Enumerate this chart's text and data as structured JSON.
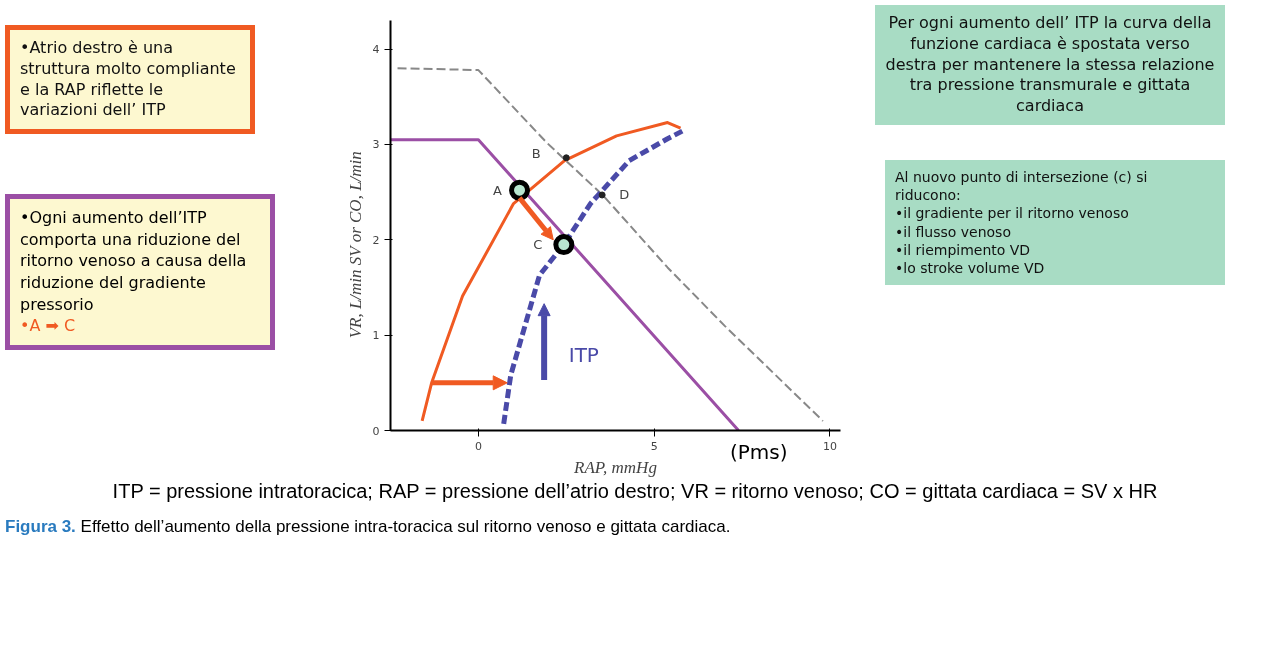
{
  "chart_data": {
    "type": "line",
    "xlabel": "RAP, mmHg",
    "ylabel": "VR, L/min          SV or CO, L/min",
    "title": "Figura 3. Effetto dell’aumento della pressione intra-toracica sul ritorno venoso e gittata cardiaca.",
    "xlim": [
      -2.5,
      10.3
    ],
    "ylim": [
      0,
      4.3
    ],
    "xticks": [
      0,
      5,
      10
    ],
    "yticks": [
      0,
      1,
      2,
      3,
      4
    ],
    "grid": false,
    "series": [
      {
        "color": "#9b4fa5",
        "line_style": "solid",
        "x": [
          -2.5,
          0,
          7.4
        ],
        "values": [
          3.05,
          3.05,
          0
        ]
      },
      {
        "color": "#888888",
        "line_style": "dashed",
        "x": [
          -2.3,
          0,
          1.94,
          3.56,
          5.38,
          7.0,
          9.8
        ],
        "values": [
          3.8,
          3.78,
          3.02,
          2.46,
          1.71,
          1.1,
          0.1
        ]
      },
      {
        "color": "#f05a22",
        "line_style": "solid",
        "x": [
          -1.6,
          -1.33,
          -0.45,
          1.0,
          2.45,
          3.93,
          5.38,
          5.75
        ],
        "values": [
          0.1,
          0.5,
          1.41,
          2.38,
          2.83,
          3.09,
          3.23,
          3.17
        ]
      },
      {
        "color": "#4a4aa8",
        "line_style": "dashed",
        "x": [
          0.72,
          0.92,
          1.74,
          2.43,
          3.19,
          4.29,
          5.38,
          5.8
        ],
        "values": [
          0.07,
          0.58,
          1.63,
          1.95,
          2.38,
          2.83,
          3.06,
          3.14
        ]
      },
      {
        "type": "scatter",
        "marker": "circle",
        "color": "#000000",
        "x": [
          1.17,
          2.43
        ],
        "values": [
          2.52,
          1.95
        ]
      },
      {
        "type": "scatter",
        "marker": "circle",
        "color": "#222222",
        "x": [
          2.5,
          3.52
        ],
        "values": [
          2.86,
          2.47
        ]
      }
    ],
    "annotations": [
      "•Atrio destro è una struttura molto compliante e la RAP riflette le variazioni dell’ ITP",
      "•Ogni aumento dell’ITP comporta una riduzione del ritorno venoso a causa della riduzione del gradiente pressorio",
      "•A ➡ C",
      "Per ogni aumento dell’ ITP la curva della funzione cardiaca è spostata verso destra per mantenere la stessa relazione tra pressione transmurale e gittata cardiaca",
      "Al nuovo punto di intersezione (c) si riducono:\n•il gradiente per il ritorno venoso\n•il flusso venoso\n•il riempimento VD\n•lo stroke volume VD",
      "ITP = pressione intratoracica; RAP = pressione dell’atrio destro; VR = ritorno venoso; CO = gittata cardiaca = SV x HR",
      "(Pms)",
      "A",
      "B",
      "C",
      "D",
      "ITP"
    ]
  }
}
